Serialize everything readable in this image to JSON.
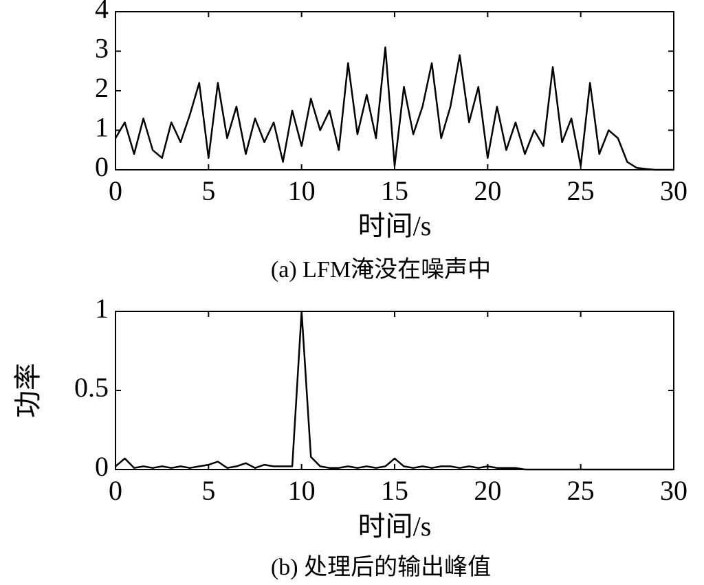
{
  "chart_data": [
    {
      "type": "line",
      "xlabel": "时间/s",
      "caption": "(a) LFM淹没在噪声中",
      "x": [
        0,
        0.5,
        1,
        1.5,
        2,
        2.5,
        3,
        3.5,
        4,
        4.5,
        5,
        5.5,
        6,
        6.5,
        7,
        7.5,
        8,
        8.5,
        9,
        9.5,
        10,
        10.5,
        11,
        11.5,
        12,
        12.5,
        13,
        13.5,
        14,
        14.5,
        15,
        15.5,
        16,
        16.5,
        17,
        17.5,
        18,
        18.5,
        19,
        19.5,
        20,
        20.5,
        21,
        21.5,
        22,
        22.5,
        23,
        23.5,
        24,
        24.5,
        25,
        25.5,
        26,
        26.5,
        27,
        27.5,
        28,
        28.5,
        29,
        29.5,
        30
      ],
      "values": [
        0.8,
        1.2,
        0.4,
        1.3,
        0.5,
        0.3,
        1.2,
        0.7,
        1.4,
        2.2,
        0.3,
        2.2,
        0.8,
        1.6,
        0.4,
        1.3,
        0.7,
        1.2,
        0.2,
        1.5,
        0.6,
        1.8,
        1.0,
        1.5,
        0.5,
        2.7,
        0.9,
        1.9,
        0.8,
        3.1,
        0.1,
        2.1,
        0.9,
        1.6,
        2.7,
        0.8,
        1.6,
        2.9,
        1.2,
        2.1,
        0.3,
        1.6,
        0.5,
        1.2,
        0.4,
        1.0,
        0.6,
        2.6,
        0.7,
        1.3,
        0.1,
        2.2,
        0.4,
        1.0,
        0.8,
        0.2,
        0.05,
        0.02,
        0,
        0,
        0
      ],
      "color": "#000000",
      "xlim": [
        0,
        30
      ],
      "xticks": [
        0,
        5,
        10,
        15,
        20,
        25,
        30
      ],
      "ylim": [
        0,
        4
      ],
      "yticks": [
        0,
        1,
        2,
        3,
        4
      ]
    },
    {
      "type": "line",
      "xlabel": "时间/s",
      "ylabel": "功率",
      "caption": "(b) 处理后的输出峰值",
      "x": [
        0,
        0.5,
        1,
        1.5,
        2,
        2.5,
        3,
        3.5,
        4,
        4.5,
        5,
        5.5,
        6,
        6.5,
        7,
        7.5,
        8,
        8.5,
        9,
        9.5,
        10,
        10.5,
        11,
        11.5,
        12,
        12.5,
        13,
        13.5,
        14,
        14.5,
        15,
        15.5,
        16,
        16.5,
        17,
        17.5,
        18,
        18.5,
        19,
        19.5,
        20,
        20.5,
        21,
        21.5,
        22,
        22.5,
        23,
        23.5,
        24,
        24.5,
        25,
        25.5,
        26,
        26.5,
        27,
        27.5,
        28,
        28.5,
        29,
        29.5,
        30
      ],
      "values": [
        0.02,
        0.07,
        0.01,
        0.02,
        0.01,
        0.02,
        0.01,
        0.02,
        0.01,
        0.02,
        0.03,
        0.05,
        0.01,
        0.02,
        0.04,
        0.01,
        0.03,
        0.02,
        0.02,
        0.02,
        1.0,
        0.08,
        0.02,
        0.01,
        0.01,
        0.02,
        0.01,
        0.02,
        0.01,
        0.02,
        0.07,
        0.02,
        0.01,
        0.02,
        0.01,
        0.02,
        0.02,
        0.01,
        0.02,
        0.01,
        0.02,
        0.01,
        0.01,
        0.01,
        0,
        0,
        0,
        0,
        0,
        0,
        0,
        0,
        0,
        0,
        0,
        0,
        0,
        0,
        0,
        0,
        0
      ],
      "color": "#000000",
      "xlim": [
        0,
        30
      ],
      "xticks": [
        0,
        5,
        10,
        15,
        20,
        25,
        30
      ],
      "ylim": [
        0,
        1
      ],
      "yticks": [
        0,
        0.5,
        1
      ]
    }
  ]
}
